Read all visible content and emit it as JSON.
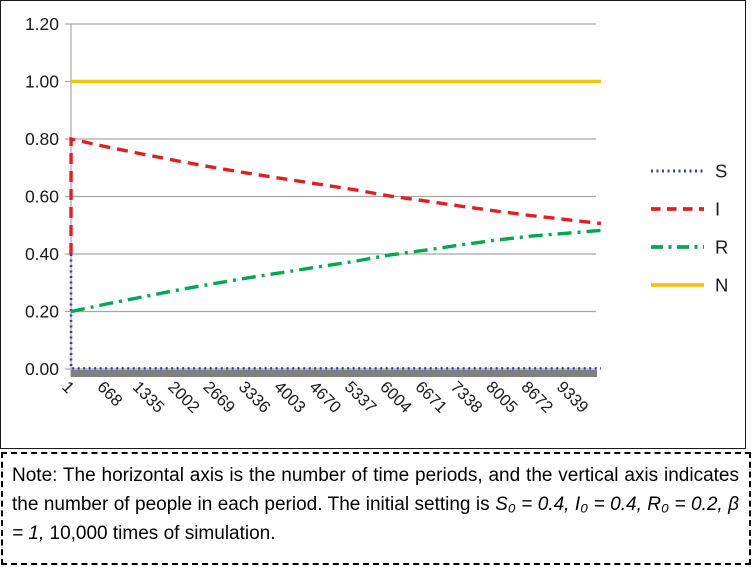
{
  "chart_data": {
    "type": "line",
    "title": "",
    "xlabel": "",
    "ylabel": "",
    "grid": true,
    "legend_position": "right",
    "colors": {
      "grid": "#a6a6a6",
      "axis_bar": "#808080",
      "text": "#1a1a1a",
      "series_S": "#3a3aad",
      "series_I": "#dd2023",
      "series_R": "#00a651",
      "series_N": "#f2c314"
    },
    "x_axis": {
      "min": 1,
      "max": 10006,
      "ticks": [
        {
          "label": "1",
          "value": 1
        },
        {
          "label": "668",
          "value": 668
        },
        {
          "label": "1335",
          "value": 1335
        },
        {
          "label": "2002",
          "value": 2002
        },
        {
          "label": "2669",
          "value": 2669
        },
        {
          "label": "3336",
          "value": 3336
        },
        {
          "label": "4003",
          "value": 4003
        },
        {
          "label": "4670",
          "value": 4670
        },
        {
          "label": "5337",
          "value": 5337
        },
        {
          "label": "6004",
          "value": 6004
        },
        {
          "label": "6671",
          "value": 6671
        },
        {
          "label": "7338",
          "value": 7338
        },
        {
          "label": "8005",
          "value": 8005
        },
        {
          "label": "8672",
          "value": 8672
        },
        {
          "label": "9339",
          "value": 9339
        }
      ]
    },
    "y_axis": {
      "min": 0,
      "max": 1.2,
      "ticks": [
        {
          "label": "0.00",
          "value": 0.0
        },
        {
          "label": "0.20",
          "value": 0.2
        },
        {
          "label": "0.40",
          "value": 0.4
        },
        {
          "label": "0.60",
          "value": 0.6
        },
        {
          "label": "0.80",
          "value": 0.8
        },
        {
          "label": "1.00",
          "value": 1.0
        },
        {
          "label": "1.20",
          "value": 1.2
        }
      ]
    },
    "x": [
      1,
      2,
      668,
      1335,
      2002,
      2669,
      3336,
      4003,
      4670,
      5337,
      6004,
      6671,
      7338,
      8005,
      8672,
      9339,
      10006
    ],
    "series": [
      {
        "name": "S",
        "style": "dotted",
        "color": "#3a3aad",
        "values": [
          0.4,
          0.002,
          0.002,
          0.002,
          0.002,
          0.002,
          0.002,
          0.002,
          0.002,
          0.002,
          0.002,
          0.002,
          0.002,
          0.002,
          0.002,
          0.002,
          0.002
        ]
      },
      {
        "name": "I",
        "style": "dashed",
        "color": "#dd2023",
        "values": [
          0.4,
          0.8,
          0.773,
          0.748,
          0.724,
          0.702,
          0.681,
          0.662,
          0.643,
          0.624,
          0.602,
          0.585,
          0.567,
          0.55,
          0.534,
          0.52,
          0.506
        ]
      },
      {
        "name": "R",
        "style": "dashdot",
        "color": "#00a651",
        "values": [
          0.2,
          0.2,
          0.226,
          0.25,
          0.274,
          0.296,
          0.317,
          0.336,
          0.355,
          0.374,
          0.396,
          0.413,
          0.431,
          0.448,
          0.462,
          0.472,
          0.482
        ]
      },
      {
        "name": "N",
        "style": "solid",
        "color": "#f2c314",
        "values": [
          1.0,
          1.0,
          1.0,
          1.0,
          1.0,
          1.0,
          1.0,
          1.0,
          1.0,
          1.0,
          1.0,
          1.0,
          1.0,
          1.0,
          1.0,
          1.0,
          1.0
        ]
      }
    ]
  },
  "note": {
    "prefix": "Note: The horizontal axis is the number of time periods, and the vertical axis indicates the number of people in each period. The initial setting is ",
    "math": "S₀ = 0.4, I₀ = 0.4, R₀ = 0.2, β = 1,",
    "suffix": " 10,000 times of simulation."
  }
}
